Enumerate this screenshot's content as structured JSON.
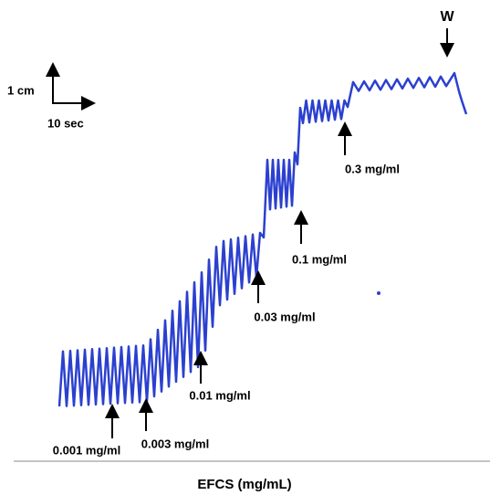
{
  "scale_bar": {
    "vertical": "1 cm",
    "horizontal": "10 sec"
  },
  "washout": "W",
  "annotations": [
    {
      "label": "0.001 mg/ml"
    },
    {
      "label": "0.003 mg/ml"
    },
    {
      "label": "0.01 mg/ml"
    },
    {
      "label": "0.03 mg/ml"
    },
    {
      "label": "0.1 mg/ml"
    },
    {
      "label": "0.3 mg/ml"
    }
  ],
  "footer": "EFCS (mg/mL)"
}
